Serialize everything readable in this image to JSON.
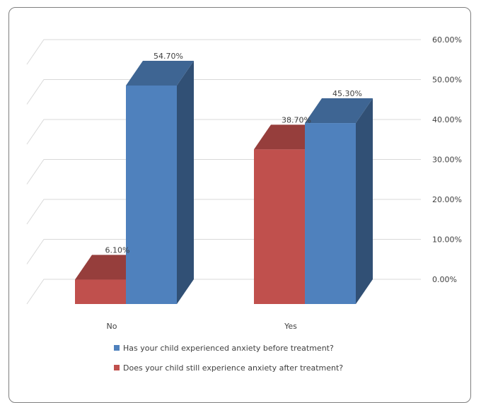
{
  "chart_data": {
    "type": "bar",
    "categories": [
      "No",
      "Yes"
    ],
    "series": [
      {
        "name": "Does your child still experience anxiety after treatment?",
        "values": [
          6.1,
          38.7
        ],
        "labels": [
          "6.10%",
          "38.70%"
        ],
        "color": "#C0504D"
      },
      {
        "name": "Has your child experienced anxiety before treatment?",
        "values": [
          54.7,
          45.3
        ],
        "labels": [
          "54.70%",
          "45.30%"
        ],
        "color": "#4F81BD"
      }
    ],
    "yticks": [
      "0.00%",
      "10.00%",
      "20.00%",
      "30.00%",
      "40.00%",
      "50.00%",
      "60.00%"
    ],
    "ylim": [
      0,
      60
    ],
    "grid": true,
    "legend_position": "bottom",
    "legend_order": [
      1,
      0
    ]
  }
}
